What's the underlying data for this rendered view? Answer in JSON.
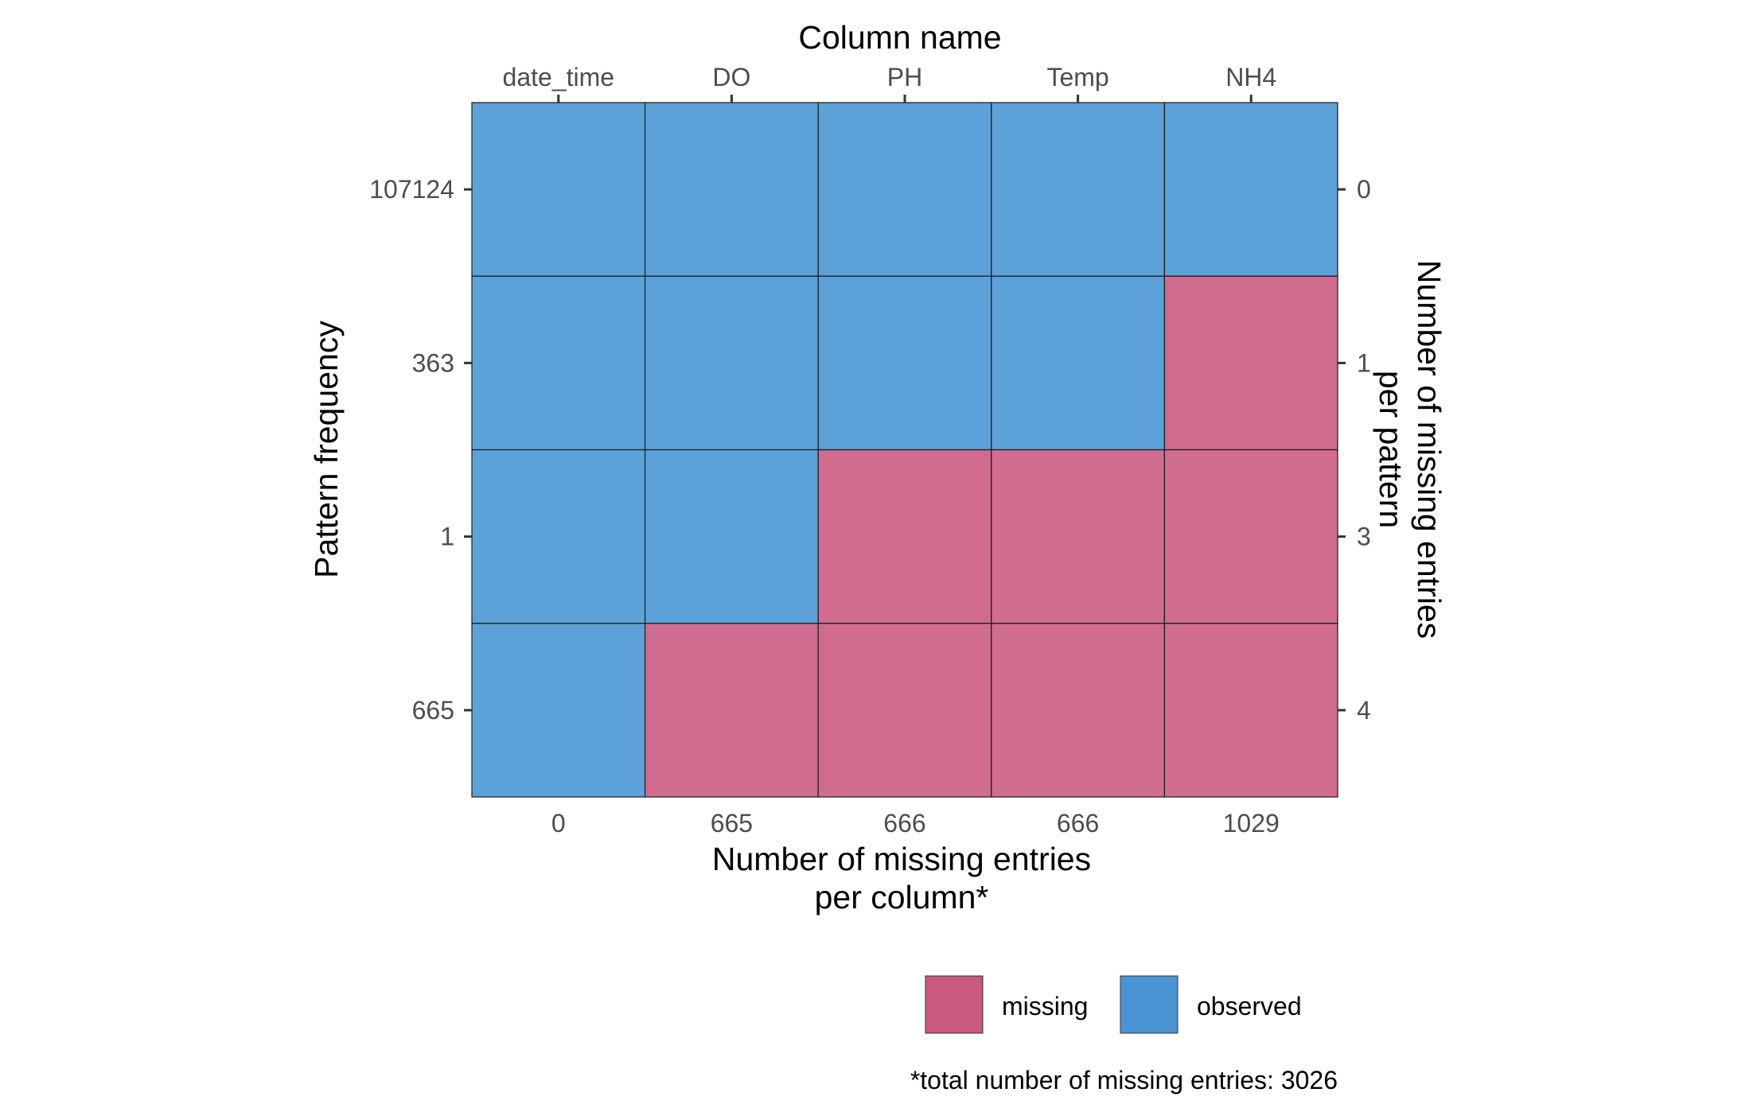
{
  "chart_data": {
    "type": "heatmap",
    "title": "",
    "columns": [
      "date_time",
      "DO",
      "PH",
      "Temp",
      "NH4"
    ],
    "column_missing_counts": [
      "0",
      "665",
      "666",
      "666",
      "1029"
    ],
    "pattern_frequencies": [
      "107124",
      "363",
      "1",
      "665"
    ],
    "pattern_missing_counts": [
      "0",
      "1",
      "3",
      "4"
    ],
    "cells": [
      [
        0,
        0,
        0,
        0,
        0
      ],
      [
        0,
        0,
        0,
        0,
        1
      ],
      [
        0,
        0,
        1,
        1,
        1
      ],
      [
        0,
        1,
        1,
        1,
        1
      ]
    ],
    "top_axis_title": "Column name",
    "left_axis_title": "Pattern frequency",
    "right_axis_title_lines": [
      "Number of missing entries",
      "per pattern"
    ],
    "bottom_axis_title_lines": [
      "Number of missing entries",
      "per column*"
    ],
    "legend": {
      "position": "bottom-right",
      "items": [
        {
          "label": "missing",
          "color": "#c95a80"
        },
        {
          "label": "observed",
          "color": "#4a94d3"
        }
      ]
    },
    "note": "*total number of missing entries: 3026",
    "grid": false,
    "colors": {
      "missing_fill": "#d06c8f",
      "observed_fill": "#5ca1d7"
    }
  }
}
